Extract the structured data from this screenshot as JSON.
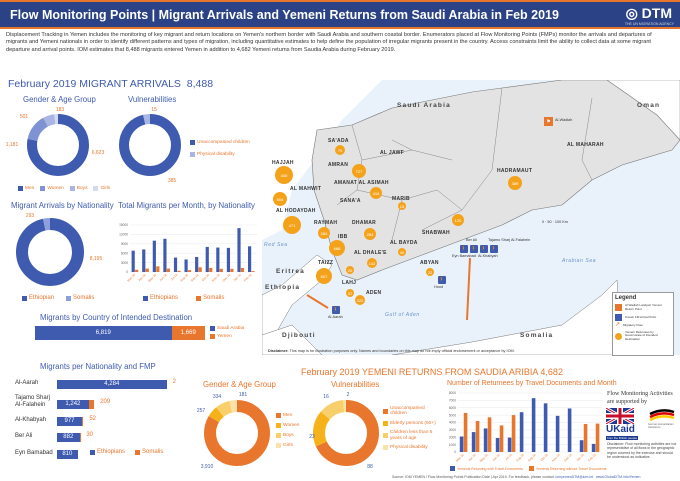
{
  "header": {
    "title": "Flow Monitoring Points | Migrant Arrivals and Yemeni Returns from Saudi Arabia in Feb 2019",
    "logo": "DTM",
    "logo_sub": "THE UN MIGRATION AGENCY"
  },
  "intro": "Displacement Tracking in Yemen includes the monitoring of key migrant and return locations on Yemen's northern border with Saudi Arabia and southern coastal border. Enumerators placed at Flow Monitoring Points (FMPs) monitor the arrivals and departures of migrants and Yemeni nationals in order to identify different patterns and types of migration, including quantitative estimates to help define the population of irregular migrants present in the country. Access constraints limit the ability to collect data at some migrant departure and arrival points. IOM estimates that 8,488 migrants entered Yemen in addition to 4,682 Yemeni returns from Saudia Arabia during February 2019.",
  "arrivals": {
    "title": "February 2019 MIGRANT ARRIVALS",
    "total": "8,488"
  },
  "returns": {
    "title": "February 2019 YEMENI RETURNS FROM SAUDIA ARIBIA",
    "total": "4,682"
  },
  "colors": {
    "blue": "#3f5bb0",
    "orange": "#e8762d",
    "header": "#2b4386"
  },
  "chart_data": [
    {
      "id": "arr_gender",
      "type": "pie",
      "title": "Gender & Age Group",
      "categories": [
        "Men",
        "Women",
        "Boys",
        "Girls"
      ],
      "values": [
        6623,
        1181,
        501,
        183
      ],
      "labels": [
        "6,623",
        "1,181",
        "501",
        "183"
      ],
      "colors": [
        "#3f5bb0",
        "#7f93d4",
        "#a9b6e3",
        "#d3daf2"
      ]
    },
    {
      "id": "arr_vuln",
      "type": "pie",
      "title": "Vulnerabilities",
      "categories": [
        "Unaccompanied children",
        "Physical disability"
      ],
      "values": [
        385,
        15
      ],
      "labels": [
        "385",
        "15"
      ],
      "colors": [
        "#3f5bb0",
        "#a9b6e3"
      ]
    },
    {
      "id": "arr_nat",
      "type": "pie",
      "title": "Migrant Arrivals by Nationality",
      "categories": [
        "Ethiopian",
        "Somalis"
      ],
      "values": [
        8195,
        293
      ],
      "labels": [
        "8,195",
        "293"
      ],
      "colors": [
        "#3f5bb0",
        "#8ea0dc"
      ]
    },
    {
      "id": "arr_month",
      "type": "bar",
      "title": "Total Migrants per Month, by Nationality",
      "categories": [
        "Mar-18",
        "Apr-18",
        "May-18",
        "Jun-18",
        "Jul-18",
        "Aug-18",
        "Sep-18",
        "Oct-18",
        "Nov-18",
        "Dec-18",
        "Jan-19",
        "Feb-19"
      ],
      "series": [
        {
          "name": "Ethiopians",
          "color": "#3f5bb0",
          "values": [
            6800,
            7200,
            10000,
            10600,
            4600,
            4000,
            4800,
            8000,
            7800,
            7700,
            14000,
            8195
          ]
        },
        {
          "name": "Somalis",
          "color": "#e8762d",
          "values": [
            700,
            1100,
            1800,
            1100,
            400,
            600,
            1500,
            1300,
            1000,
            1000,
            1300,
            293
          ]
        }
      ],
      "ylim": [
        0,
        15000
      ],
      "yticks": [
        "0",
        "3000",
        "6000",
        "9000",
        "12000",
        "15000"
      ]
    },
    {
      "id": "dest",
      "type": "bar",
      "title": "Migrants by Country of Intended Destination",
      "categories": [
        "Saudi Arabia",
        "Yemen"
      ],
      "values": [
        6819,
        1669
      ],
      "labels": [
        "6,819",
        "1,669"
      ],
      "colors": [
        "#3f5bb0",
        "#e8762d"
      ]
    },
    {
      "id": "fmp",
      "type": "bar",
      "title": "Migrants per Nationality and FMP",
      "categories": [
        "Al-Aarah",
        "Tajamo Sharj Al-Falahein",
        "Al-Khabyah",
        "Ber Ali",
        "Eyn Bamabad"
      ],
      "series": [
        {
          "name": "Ethiopians",
          "color": "#3f5bb0",
          "values": [
            4284,
            1242,
            977,
            882,
            810
          ],
          "labels": [
            "4,284",
            "1,242",
            "977",
            "882",
            "810"
          ]
        },
        {
          "name": "Somalis",
          "color": "#e8762d",
          "values": [
            2,
            209,
            52,
            30,
            0
          ],
          "labels": [
            "2",
            "209",
            "52",
            "30",
            ""
          ]
        }
      ]
    },
    {
      "id": "ret_gender",
      "type": "pie",
      "title": "Gender & Age Group",
      "categories": [
        "Men",
        "Women",
        "Boys",
        "Girls"
      ],
      "values": [
        3910,
        257,
        334,
        181
      ],
      "labels": [
        "3,910",
        "257",
        "334",
        "181"
      ],
      "colors": [
        "#e8762d",
        "#f6b21b",
        "#f8cf6a",
        "#fbe2a8"
      ]
    },
    {
      "id": "ret_vuln",
      "type": "pie",
      "title": "Vulnerabilities",
      "categories": [
        "Unaccompanied children",
        "Elderly persons (60+)",
        "Children less than 5 years of age",
        "Physical disability"
      ],
      "values": [
        88,
        23,
        16,
        2
      ],
      "labels": [
        "88",
        "23",
        "16",
        "2"
      ],
      "colors": [
        "#e8762d",
        "#f6b21b",
        "#f8cf6a",
        "#fbe2a8"
      ]
    },
    {
      "id": "ret_month",
      "type": "bar",
      "title": "Number of Returnees by Travel  Documents and Month",
      "categories": [
        "Mar-18",
        "Apr-18",
        "May-18",
        "Jun-18",
        "Jul-18",
        "Aug-18",
        "Sep-18",
        "Oct-18",
        "Nov-18",
        "Dec-18",
        "Jan-19",
        "Feb-19"
      ],
      "series": [
        {
          "name": "Yemenis Returning with Travel Documents",
          "color": "#3f5bb0",
          "values": [
            2100,
            2700,
            3200,
            1900,
            1950,
            5400,
            7300,
            6600,
            4900,
            5900,
            1600,
            1100
          ]
        },
        {
          "name": "Yemenis Returning without Travel Documents",
          "color": "#e8762d",
          "values": [
            5300,
            4200,
            4700,
            3600,
            5000,
            0,
            0,
            0,
            0,
            0,
            3800,
            3850
          ]
        }
      ],
      "ylim": [
        0,
        8000
      ],
      "yticks": [
        "0",
        "1000",
        "2000",
        "3000",
        "4000",
        "5000",
        "6000",
        "7000",
        "8000"
      ]
    }
  ],
  "map": {
    "countries": [
      "Saudi Arabia",
      "Oman",
      "Eritrea",
      "Ethiopia",
      "Djibouti",
      "Somalia"
    ],
    "seas": [
      "Red Sea",
      "Gulf of Aden",
      "Arabian Sea"
    ],
    "governorates": [
      "SA'ADA",
      "AL JAWF",
      "HAJJAH",
      "AMRAN",
      "AL MAHWIT",
      "AMANAT AL ASIMAH",
      "SANA'A",
      "MARIB",
      "AL HODAYDAH",
      "RAYMAH",
      "DHAMAR",
      "IBB",
      "AL BAYDA",
      "AL DHALE'E",
      "TAIZZ",
      "LAHJ",
      "ADEN",
      "ABYAN",
      "SHABWAH",
      "HADRAMAUT",
      "AL MAHARAH"
    ],
    "returnee_counts": [
      "70",
      "440",
      "727",
      "604",
      "418",
      "471",
      "284",
      "284",
      "686",
      "607",
      "20",
      "40",
      "22",
      "142",
      "37",
      "322",
      "389",
      "120",
      "15"
    ],
    "fmps": [
      "Al-Aarah",
      "Hood",
      "Eyn Bamabad",
      "Ber Ali",
      "Al-Khabyah",
      "Tajamo Sharj Al-Falahein",
      "Al-Wadiah"
    ],
    "disclaimer_label": "Disclaimer:",
    "disclaimer": "This map is for illustration purposes only. Names and boundaries on this map do not imply official endorsement or acceptance by IOM.",
    "legend": {
      "title": "Legend",
      "items": [
        "Al Wadiah Landport Yemeni Return Point",
        "Known FM Arrival Point",
        "Migratory Flow",
        "Yemeni Returnees by Governorate of Intended Destination"
      ]
    },
    "scale": [
      "0",
      "25",
      "50",
      "75",
      "100"
    ],
    "scale_unit": "Km"
  },
  "support": {
    "title": "Flow Monitoring Activities are supported by",
    "ukaid": "UKaid",
    "ukaid_sub": "from the British people",
    "german": "German Humanitarian Assistance",
    "disclaimer": "Disclaimer: Flow monitoring activities are not representative of all flows in the geographic region covered by the exercise and should be understood as indicative."
  },
  "footer": {
    "text": "Source: IOM YEMEN / Flow Monitoring Points  Publication  Date | Apr 2019.  For feedback, please contact:",
    "email": "iomyemenDTM@iom.int",
    "web": "www.GlobalDTM.info/Yemen"
  }
}
